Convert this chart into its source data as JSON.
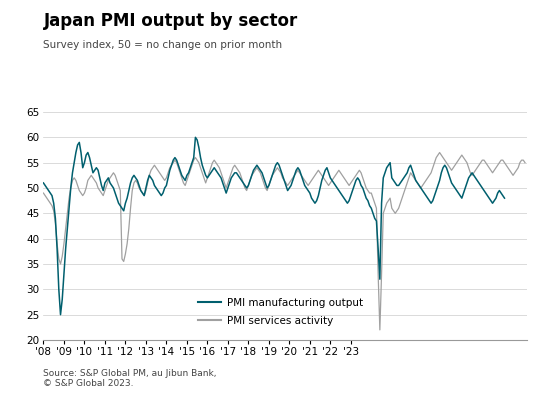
{
  "title": "Japan PMI output by sector",
  "subtitle": "Survey index, 50 = no change on prior month",
  "source": "Source: S&P Global PM, au Jibun Bank,\n© S&P Global 2023.",
  "ylim": [
    20,
    65
  ],
  "yticks": [
    20,
    25,
    30,
    35,
    40,
    45,
    50,
    55,
    60,
    65
  ],
  "color_manufacturing": "#005f6e",
  "color_services": "#a0a0a0",
  "legend_labels": [
    "PMI manufacturing output",
    "PMI services activity"
  ],
  "start_year": 2008,
  "manufacturing": [
    51.0,
    50.5,
    50.0,
    49.5,
    49.0,
    48.5,
    47.0,
    44.0,
    38.0,
    30.0,
    25.0,
    28.0,
    33.0,
    38.0,
    42.0,
    46.0,
    50.0,
    53.0,
    55.0,
    57.0,
    58.5,
    59.0,
    57.0,
    54.0,
    55.0,
    56.5,
    57.0,
    56.0,
    54.5,
    53.0,
    53.5,
    54.0,
    53.5,
    52.0,
    50.5,
    49.5,
    51.0,
    51.5,
    52.0,
    51.0,
    50.5,
    50.0,
    49.0,
    48.0,
    47.0,
    46.5,
    46.0,
    45.5,
    47.0,
    48.0,
    49.5,
    51.0,
    52.0,
    52.5,
    52.0,
    51.5,
    50.5,
    49.5,
    49.0,
    48.5,
    50.0,
    51.5,
    52.5,
    52.0,
    51.5,
    50.5,
    50.0,
    49.5,
    49.0,
    48.5,
    49.0,
    50.0,
    50.5,
    52.0,
    53.5,
    54.5,
    55.5,
    56.0,
    55.5,
    54.5,
    53.5,
    52.5,
    52.0,
    51.5,
    52.5,
    53.0,
    54.0,
    55.0,
    56.0,
    60.0,
    59.5,
    58.0,
    56.0,
    54.5,
    53.5,
    52.5,
    52.0,
    52.5,
    53.0,
    53.5,
    54.0,
    53.5,
    53.0,
    52.5,
    52.0,
    51.0,
    50.0,
    49.0,
    50.0,
    51.0,
    52.0,
    52.5,
    53.0,
    53.0,
    52.5,
    52.0,
    51.5,
    51.0,
    50.5,
    50.0,
    50.5,
    51.5,
    52.5,
    53.5,
    54.0,
    54.5,
    54.0,
    53.5,
    53.0,
    52.0,
    51.0,
    50.0,
    50.5,
    51.5,
    52.5,
    53.5,
    54.5,
    55.0,
    54.5,
    53.5,
    52.5,
    51.5,
    50.5,
    49.5,
    50.0,
    50.5,
    51.5,
    52.5,
    53.5,
    54.0,
    53.5,
    52.5,
    51.5,
    50.5,
    50.0,
    49.5,
    49.0,
    48.0,
    47.5,
    47.0,
    47.5,
    48.5,
    50.0,
    51.5,
    52.5,
    53.5,
    54.0,
    53.0,
    52.0,
    51.5,
    51.0,
    50.5,
    50.0,
    49.5,
    49.0,
    48.5,
    48.0,
    47.5,
    47.0,
    47.5,
    48.5,
    49.5,
    50.5,
    51.5,
    52.0,
    51.5,
    50.5,
    50.0,
    49.0,
    48.0,
    47.5,
    46.5,
    46.0,
    45.0,
    44.0,
    43.5,
    38.0,
    32.0,
    47.0,
    52.0,
    53.0,
    54.0,
    54.5,
    55.0,
    52.0,
    51.5,
    51.0,
    50.5,
    50.5,
    51.0,
    51.5,
    52.0,
    52.5,
    53.0,
    54.0,
    54.5,
    53.5,
    52.5,
    51.5,
    51.0,
    50.5,
    50.0,
    49.5,
    49.0,
    48.5,
    48.0,
    47.5,
    47.0,
    47.5,
    48.5,
    49.5,
    50.5,
    51.5,
    53.0,
    54.0,
    54.5,
    54.0,
    53.0,
    52.0,
    51.0,
    50.5,
    50.0,
    49.5,
    49.0,
    48.5,
    48.0,
    49.0,
    50.0,
    51.0,
    52.0,
    52.5,
    53.0,
    52.5,
    52.0,
    51.5,
    51.0,
    50.5,
    50.0,
    49.5,
    49.0,
    48.5,
    48.0,
    47.5,
    47.0,
    47.5,
    48.0,
    49.0,
    49.5,
    49.0,
    48.5,
    48.0
  ],
  "services": [
    49.0,
    48.5,
    48.0,
    47.5,
    47.0,
    46.5,
    45.5,
    43.0,
    39.0,
    36.0,
    35.0,
    36.5,
    39.0,
    42.0,
    45.0,
    48.0,
    50.0,
    51.5,
    52.0,
    51.5,
    50.5,
    49.5,
    49.0,
    48.5,
    49.0,
    50.0,
    51.5,
    52.0,
    52.5,
    52.0,
    51.5,
    51.0,
    50.0,
    49.5,
    49.0,
    48.5,
    49.5,
    50.5,
    51.5,
    52.0,
    52.5,
    53.0,
    52.5,
    51.5,
    50.5,
    49.5,
    36.0,
    35.5,
    37.0,
    39.0,
    42.0,
    46.0,
    49.5,
    51.0,
    51.5,
    51.0,
    50.0,
    49.5,
    49.0,
    48.5,
    49.5,
    51.0,
    52.5,
    53.5,
    54.0,
    54.5,
    54.0,
    53.5,
    53.0,
    52.5,
    52.0,
    51.5,
    52.0,
    53.0,
    54.0,
    54.5,
    55.0,
    55.5,
    55.0,
    54.0,
    53.0,
    52.0,
    51.0,
    50.5,
    51.5,
    52.5,
    53.5,
    54.5,
    55.5,
    56.0,
    55.5,
    55.0,
    54.0,
    53.0,
    52.0,
    51.0,
    52.0,
    53.0,
    54.0,
    55.0,
    55.5,
    55.0,
    54.5,
    54.0,
    53.0,
    52.0,
    51.0,
    50.0,
    51.0,
    52.0,
    53.0,
    54.0,
    54.5,
    54.0,
    53.5,
    53.0,
    52.0,
    51.0,
    50.0,
    49.5,
    50.5,
    51.5,
    52.5,
    53.0,
    53.5,
    54.0,
    53.5,
    53.0,
    52.0,
    51.0,
    50.0,
    49.5,
    50.5,
    51.5,
    52.5,
    53.0,
    53.5,
    54.0,
    53.5,
    53.0,
    52.0,
    51.5,
    51.0,
    50.5,
    51.0,
    51.5,
    52.0,
    52.5,
    53.0,
    53.5,
    53.0,
    52.5,
    52.0,
    51.5,
    51.0,
    50.5,
    51.0,
    51.5,
    52.0,
    52.5,
    53.0,
    53.5,
    53.0,
    52.5,
    52.0,
    51.5,
    51.0,
    50.5,
    51.0,
    51.5,
    52.0,
    52.5,
    53.0,
    53.5,
    53.0,
    52.5,
    52.0,
    51.5,
    51.0,
    50.5,
    51.0,
    51.5,
    52.0,
    52.5,
    53.0,
    53.5,
    53.0,
    52.0,
    51.0,
    50.0,
    49.5,
    49.0,
    49.0,
    48.0,
    47.0,
    46.0,
    33.0,
    22.0,
    33.0,
    45.0,
    46.0,
    47.0,
    47.5,
    48.0,
    46.0,
    45.5,
    45.0,
    45.5,
    46.0,
    47.0,
    48.0,
    49.0,
    50.0,
    51.0,
    52.0,
    53.0,
    52.5,
    52.0,
    51.5,
    51.0,
    50.5,
    50.0,
    50.5,
    51.0,
    51.5,
    52.0,
    52.5,
    53.0,
    54.0,
    55.0,
    56.0,
    56.5,
    57.0,
    56.5,
    56.0,
    55.5,
    55.0,
    54.5,
    54.0,
    53.5,
    54.0,
    54.5,
    55.0,
    55.5,
    56.0,
    56.5,
    56.0,
    55.5,
    55.0,
    54.0,
    53.0,
    52.5,
    53.0,
    53.5,
    54.0,
    54.5,
    55.0,
    55.5,
    55.5,
    55.0,
    54.5,
    54.0,
    53.5,
    53.0,
    53.5,
    54.0,
    54.5,
    55.0,
    55.5,
    55.5,
    55.0,
    54.5,
    54.0,
    53.5,
    53.0,
    52.5,
    53.0,
    53.5,
    54.0,
    55.0,
    55.5,
    55.5,
    55.0
  ]
}
